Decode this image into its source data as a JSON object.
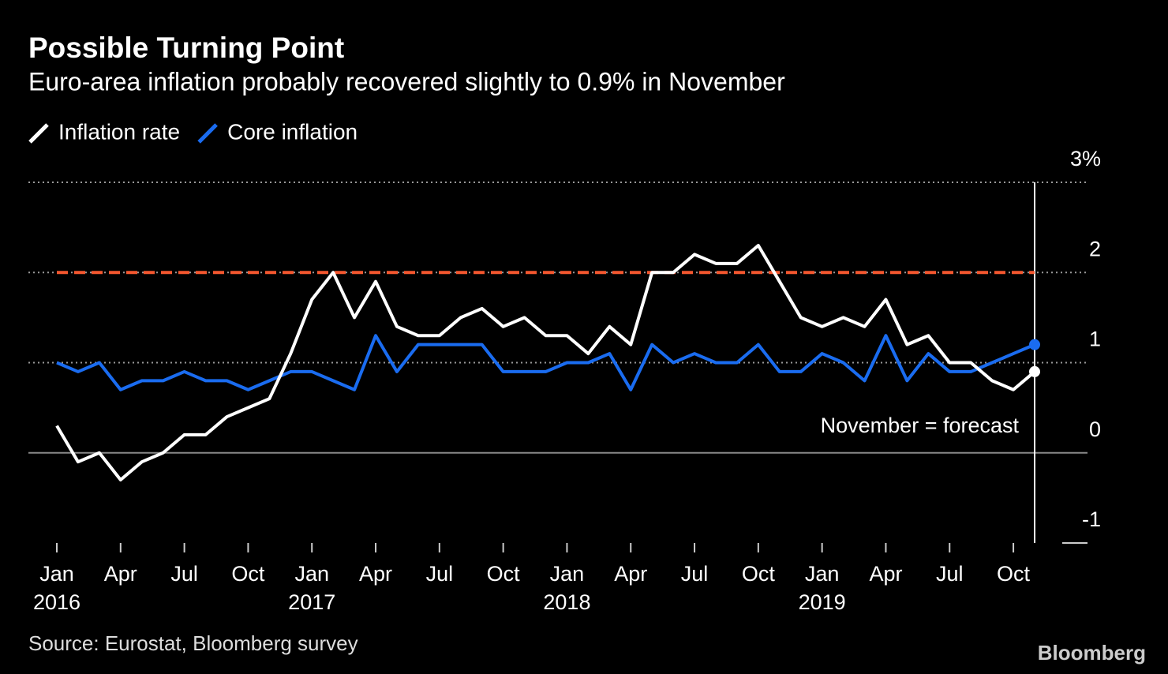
{
  "chart_data": {
    "type": "line",
    "title": "Possible Turning Point",
    "subtitle": "Euro-area inflation probably recovered slightly to 0.9% in November",
    "x": [
      "2016-01",
      "2016-02",
      "2016-03",
      "2016-04",
      "2016-05",
      "2016-06",
      "2016-07",
      "2016-08",
      "2016-09",
      "2016-10",
      "2016-11",
      "2016-12",
      "2017-01",
      "2017-02",
      "2017-03",
      "2017-04",
      "2017-05",
      "2017-06",
      "2017-07",
      "2017-08",
      "2017-09",
      "2017-10",
      "2017-11",
      "2017-12",
      "2018-01",
      "2018-02",
      "2018-03",
      "2018-04",
      "2018-05",
      "2018-06",
      "2018-07",
      "2018-08",
      "2018-09",
      "2018-10",
      "2018-11",
      "2018-12",
      "2019-01",
      "2019-02",
      "2019-03",
      "2019-04",
      "2019-05",
      "2019-06",
      "2019-07",
      "2019-08",
      "2019-09",
      "2019-10",
      "2019-11"
    ],
    "series": [
      {
        "name": "Inflation rate",
        "color": "#ffffff",
        "values": [
          0.3,
          -0.1,
          0.0,
          -0.3,
          -0.1,
          0.0,
          0.2,
          0.2,
          0.4,
          0.5,
          0.6,
          1.1,
          1.7,
          2.0,
          1.5,
          1.9,
          1.4,
          1.3,
          1.3,
          1.5,
          1.6,
          1.4,
          1.5,
          1.3,
          1.3,
          1.1,
          1.4,
          1.2,
          2.0,
          2.0,
          2.2,
          2.1,
          2.1,
          2.3,
          1.9,
          1.5,
          1.4,
          1.5,
          1.4,
          1.7,
          1.2,
          1.3,
          1.0,
          1.0,
          0.8,
          0.7,
          0.9
        ]
      },
      {
        "name": "Core inflation",
        "color": "#1a6cf0",
        "values": [
          1.0,
          0.9,
          1.0,
          0.7,
          0.8,
          0.8,
          0.9,
          0.8,
          0.8,
          0.7,
          0.8,
          0.9,
          0.9,
          0.8,
          0.7,
          1.3,
          0.9,
          1.2,
          1.2,
          1.2,
          1.2,
          0.9,
          0.9,
          0.9,
          1.0,
          1.0,
          1.1,
          0.7,
          1.2,
          1.0,
          1.1,
          1.0,
          1.0,
          1.2,
          0.9,
          0.9,
          1.1,
          1.0,
          0.8,
          1.3,
          0.8,
          1.1,
          0.9,
          0.9,
          1.0,
          1.1,
          1.2
        ]
      }
    ],
    "reference_line": {
      "value": 2,
      "color": "#f4572f"
    },
    "annotation": "November = forecast",
    "ylim": [
      -1,
      3
    ],
    "yticks": [
      -1,
      0,
      1,
      {
        "value": 3,
        "label": "3%"
      },
      2
    ],
    "xticks": [
      {
        "value": "2016-01",
        "label": "Jan"
      },
      {
        "value": "2016-04",
        "label": "Apr"
      },
      {
        "value": "2016-07",
        "label": "Jul"
      },
      {
        "value": "2016-10",
        "label": "Oct"
      },
      {
        "value": "2017-01",
        "label": "Jan"
      },
      {
        "value": "2017-04",
        "label": "Apr"
      },
      {
        "value": "2017-07",
        "label": "Jul"
      },
      {
        "value": "2017-10",
        "label": "Oct"
      },
      {
        "value": "2018-01",
        "label": "Jan"
      },
      {
        "value": "2018-04",
        "label": "Apr"
      },
      {
        "value": "2018-07",
        "label": "Jul"
      },
      {
        "value": "2018-10",
        "label": "Oct"
      },
      {
        "value": "2019-01",
        "label": "Jan"
      },
      {
        "value": "2019-04",
        "label": "Apr"
      },
      {
        "value": "2019-07",
        "label": "Jul"
      },
      {
        "value": "2019-10",
        "label": "Oct"
      }
    ],
    "xtick_years": [
      {
        "value": "2016-01",
        "label": "2016"
      },
      {
        "value": "2017-01",
        "label": "2017"
      },
      {
        "value": "2018-01",
        "label": "2018"
      },
      {
        "value": "2019-01",
        "label": "2019"
      }
    ],
    "source": "Source: Eurostat, Bloomberg survey",
    "logo": "Bloomberg"
  }
}
